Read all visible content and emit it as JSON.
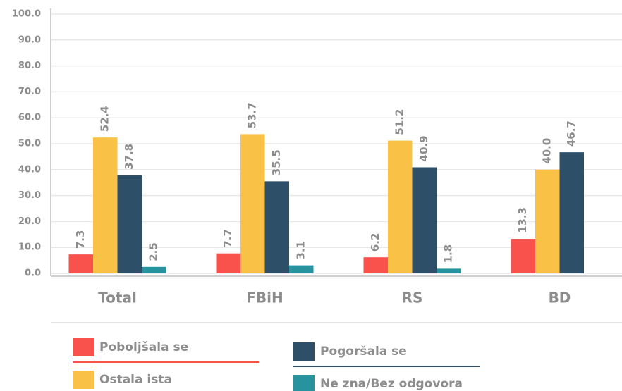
{
  "chart_data": {
    "type": "bar",
    "categories": [
      "Total",
      "FBiH",
      "RS",
      "BD"
    ],
    "series": [
      {
        "name": "Poboljšala se",
        "color": "#f9514c",
        "values": [
          7.3,
          7.7,
          6.2,
          13.3
        ]
      },
      {
        "name": "Ostala ista",
        "color": "#f9c146",
        "values": [
          52.4,
          53.7,
          51.2,
          40
        ],
        "value_labels": [
          "52.4",
          "53.7",
          "51.2",
          "40.0"
        ]
      },
      {
        "name": "Pogoršala se",
        "color": "#2d5068",
        "values": [
          37.8,
          35.5,
          40.9,
          46.7
        ]
      },
      {
        "name": "Ne zna/Bez odgovora",
        "color": "#27939f",
        "values": [
          2.5,
          3.1,
          1.8,
          null
        ]
      }
    ],
    "ylim": [
      0,
      100
    ],
    "yticks": [
      {
        "value": 0,
        "label": "0.0"
      },
      {
        "value": 10,
        "label": "10.0"
      },
      {
        "value": 20,
        "label": "20.0"
      },
      {
        "value": 30,
        "label": "30.0"
      },
      {
        "value": 40,
        "label": "40.0"
      },
      {
        "value": 50,
        "label": "50.0"
      },
      {
        "value": 60,
        "label": "60.0"
      },
      {
        "value": 70,
        "label": "70.0"
      },
      {
        "value": 80,
        "label": "80.0"
      },
      {
        "value": 90,
        "label": "90.0"
      },
      {
        "value": 100,
        "label": "100.0"
      }
    ],
    "grid": true
  }
}
